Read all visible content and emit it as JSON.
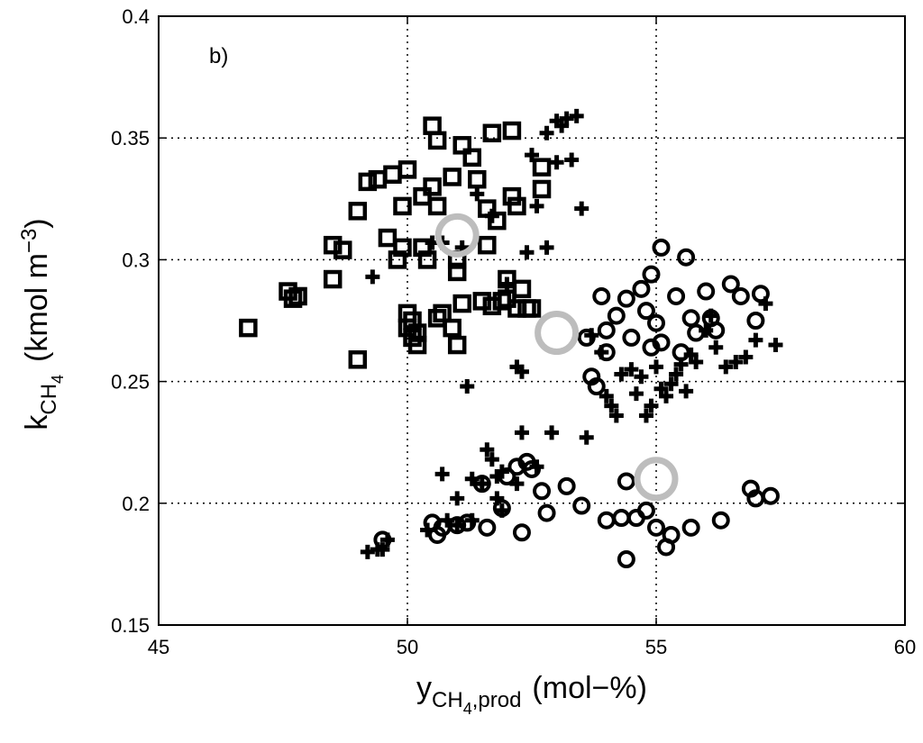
{
  "chart_data": {
    "type": "scatter",
    "panel_label": "b)",
    "xlabel": {
      "main": "y",
      "sub": "CH",
      "sub_digit": "4",
      "sub_tail": ",prod",
      "unit": "(mol−%)"
    },
    "ylabel": {
      "main": "k",
      "sub": "CH",
      "sub_digit": "4",
      "unit_open": "(kmol m",
      "unit_exp": "−3",
      "unit_close": ")"
    },
    "xlim": [
      45,
      60
    ],
    "ylim": [
      0.15,
      0.4
    ],
    "xticks": [
      45,
      50,
      55,
      60
    ],
    "yticks": [
      0.15,
      0.2,
      0.25,
      0.3,
      0.35,
      0.4
    ],
    "xtick_labels": [
      "45",
      "50",
      "55",
      "60"
    ],
    "ytick_labels": [
      "0.15",
      "0.2",
      "0.25",
      "0.3",
      "0.35",
      "0.4"
    ],
    "grid": true,
    "series": [
      {
        "marker": "square",
        "color": "#000000",
        "points": [
          [
            46.8,
            0.272
          ],
          [
            47.6,
            0.287
          ],
          [
            47.7,
            0.284
          ],
          [
            47.8,
            0.285
          ],
          [
            48.5,
            0.306
          ],
          [
            48.5,
            0.292
          ],
          [
            48.7,
            0.304
          ],
          [
            49.0,
            0.32
          ],
          [
            49.0,
            0.259
          ],
          [
            49.2,
            0.332
          ],
          [
            49.4,
            0.333
          ],
          [
            49.6,
            0.309
          ],
          [
            49.7,
            0.335
          ],
          [
            49.8,
            0.3
          ],
          [
            49.9,
            0.322
          ],
          [
            49.9,
            0.305
          ],
          [
            50.0,
            0.337
          ],
          [
            50.0,
            0.278
          ],
          [
            50.0,
            0.272
          ],
          [
            50.1,
            0.275
          ],
          [
            50.1,
            0.268
          ],
          [
            50.2,
            0.27
          ],
          [
            50.2,
            0.265
          ],
          [
            50.3,
            0.326
          ],
          [
            50.3,
            0.305
          ],
          [
            50.4,
            0.3
          ],
          [
            50.5,
            0.355
          ],
          [
            50.5,
            0.33
          ],
          [
            50.6,
            0.349
          ],
          [
            50.6,
            0.322
          ],
          [
            50.6,
            0.276
          ],
          [
            50.7,
            0.278
          ],
          [
            50.9,
            0.334
          ],
          [
            50.9,
            0.272
          ],
          [
            51.0,
            0.3
          ],
          [
            51.0,
            0.265
          ],
          [
            51.0,
            0.295
          ],
          [
            51.1,
            0.347
          ],
          [
            51.1,
            0.282
          ],
          [
            51.3,
            0.342
          ],
          [
            51.4,
            0.333
          ],
          [
            51.5,
            0.283
          ],
          [
            51.6,
            0.321
          ],
          [
            51.6,
            0.306
          ],
          [
            51.7,
            0.352
          ],
          [
            51.7,
            0.281
          ],
          [
            51.8,
            0.316
          ],
          [
            51.9,
            0.283
          ],
          [
            52.0,
            0.292
          ],
          [
            52.0,
            0.284
          ],
          [
            52.1,
            0.353
          ],
          [
            52.1,
            0.326
          ],
          [
            52.2,
            0.322
          ],
          [
            52.2,
            0.28
          ],
          [
            52.3,
            0.288
          ],
          [
            52.4,
            0.28
          ],
          [
            52.5,
            0.28
          ],
          [
            52.7,
            0.338
          ],
          [
            52.7,
            0.329
          ]
        ]
      },
      {
        "marker": "plus",
        "color": "#000000",
        "points": [
          [
            49.2,
            0.18
          ],
          [
            49.3,
            0.293
          ],
          [
            49.4,
            0.181
          ],
          [
            49.5,
            0.181
          ],
          [
            49.6,
            0.185
          ],
          [
            50.4,
            0.189
          ],
          [
            50.5,
            0.307
          ],
          [
            50.7,
            0.212
          ],
          [
            50.7,
            0.307
          ],
          [
            50.8,
            0.193
          ],
          [
            51.0,
            0.202
          ],
          [
            51.0,
            0.191
          ],
          [
            51.1,
            0.305
          ],
          [
            51.2,
            0.248
          ],
          [
            51.3,
            0.21
          ],
          [
            51.3,
            0.193
          ],
          [
            51.4,
            0.327
          ],
          [
            51.5,
            0.208
          ],
          [
            51.6,
            0.222
          ],
          [
            51.7,
            0.318
          ],
          [
            51.7,
            0.218
          ],
          [
            51.8,
            0.211
          ],
          [
            51.8,
            0.202
          ],
          [
            51.9,
            0.213
          ],
          [
            51.9,
            0.197
          ],
          [
            52.0,
            0.29
          ],
          [
            52.2,
            0.256
          ],
          [
            52.2,
            0.208
          ],
          [
            52.3,
            0.254
          ],
          [
            52.3,
            0.229
          ],
          [
            52.4,
            0.303
          ],
          [
            52.5,
            0.343
          ],
          [
            52.6,
            0.322
          ],
          [
            52.6,
            0.215
          ],
          [
            52.8,
            0.352
          ],
          [
            52.8,
            0.305
          ],
          [
            52.9,
            0.229
          ],
          [
            53.0,
            0.357
          ],
          [
            53.0,
            0.34
          ],
          [
            53.1,
            0.355
          ],
          [
            53.2,
            0.358
          ],
          [
            53.3,
            0.341
          ],
          [
            53.4,
            0.359
          ],
          [
            53.5,
            0.321
          ],
          [
            53.6,
            0.227
          ],
          [
            53.7,
            0.269
          ],
          [
            53.9,
            0.262
          ],
          [
            54.0,
            0.244
          ],
          [
            54.1,
            0.24
          ],
          [
            54.2,
            0.236
          ],
          [
            54.3,
            0.253
          ],
          [
            54.5,
            0.255
          ],
          [
            54.6,
            0.245
          ],
          [
            54.7,
            0.252
          ],
          [
            54.8,
            0.236
          ],
          [
            54.9,
            0.24
          ],
          [
            55.0,
            0.256
          ],
          [
            55.1,
            0.247
          ],
          [
            55.2,
            0.244
          ],
          [
            55.3,
            0.249
          ],
          [
            55.4,
            0.253
          ],
          [
            55.5,
            0.257
          ],
          [
            55.6,
            0.246
          ],
          [
            55.7,
            0.261
          ],
          [
            55.8,
            0.258
          ],
          [
            56.0,
            0.271
          ],
          [
            56.1,
            0.277
          ],
          [
            56.2,
            0.264
          ],
          [
            56.4,
            0.256
          ],
          [
            56.6,
            0.258
          ],
          [
            56.8,
            0.26
          ],
          [
            57.0,
            0.267
          ],
          [
            57.2,
            0.282
          ],
          [
            57.4,
            0.265
          ]
        ]
      },
      {
        "marker": "circle",
        "color": "#000000",
        "points": [
          [
            49.5,
            0.185
          ],
          [
            50.5,
            0.192
          ],
          [
            50.6,
            0.187
          ],
          [
            50.7,
            0.19
          ],
          [
            51.0,
            0.191
          ],
          [
            51.2,
            0.192
          ],
          [
            51.5,
            0.208
          ],
          [
            51.6,
            0.19
          ],
          [
            51.9,
            0.198
          ],
          [
            52.0,
            0.211
          ],
          [
            52.2,
            0.215
          ],
          [
            52.3,
            0.188
          ],
          [
            52.4,
            0.217
          ],
          [
            52.5,
            0.214
          ],
          [
            52.7,
            0.205
          ],
          [
            52.8,
            0.196
          ],
          [
            53.2,
            0.207
          ],
          [
            53.5,
            0.199
          ],
          [
            53.6,
            0.268
          ],
          [
            53.7,
            0.252
          ],
          [
            53.8,
            0.248
          ],
          [
            53.9,
            0.285
          ],
          [
            54.0,
            0.271
          ],
          [
            54.0,
            0.262
          ],
          [
            54.2,
            0.277
          ],
          [
            54.3,
            0.194
          ],
          [
            54.4,
            0.284
          ],
          [
            54.4,
            0.209
          ],
          [
            54.5,
            0.268
          ],
          [
            54.6,
            0.194
          ],
          [
            54.7,
            0.288
          ],
          [
            54.8,
            0.279
          ],
          [
            54.8,
            0.197
          ],
          [
            54.9,
            0.294
          ],
          [
            54.9,
            0.264
          ],
          [
            55.0,
            0.274
          ],
          [
            55.0,
            0.19
          ],
          [
            55.1,
            0.305
          ],
          [
            55.1,
            0.266
          ],
          [
            55.2,
            0.182
          ],
          [
            55.3,
            0.187
          ],
          [
            55.4,
            0.285
          ],
          [
            55.5,
            0.262
          ],
          [
            55.6,
            0.301
          ],
          [
            55.7,
            0.276
          ],
          [
            55.8,
            0.27
          ],
          [
            56.0,
            0.287
          ],
          [
            56.1,
            0.276
          ],
          [
            56.2,
            0.271
          ],
          [
            56.3,
            0.193
          ],
          [
            56.5,
            0.29
          ],
          [
            56.7,
            0.285
          ],
          [
            56.9,
            0.206
          ],
          [
            57.0,
            0.202
          ],
          [
            57.0,
            0.275
          ],
          [
            57.1,
            0.286
          ],
          [
            57.3,
            0.203
          ],
          [
            54.4,
            0.177
          ],
          [
            54.0,
            0.193
          ],
          [
            55.7,
            0.19
          ]
        ]
      },
      {
        "marker": "large-circle",
        "color": "#bdbdbd",
        "points": [
          [
            51.0,
            0.31
          ],
          [
            53.0,
            0.27
          ],
          [
            55.0,
            0.21
          ]
        ]
      }
    ]
  }
}
